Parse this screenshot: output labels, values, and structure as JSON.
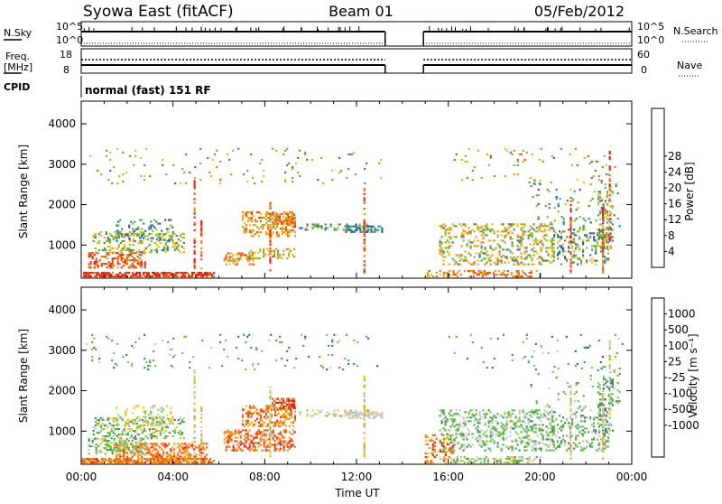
{
  "header": {
    "station": "Syowa East (fitACF)",
    "beam": "Beam 01",
    "date": "05/Feb/2012"
  },
  "panels": {
    "nsky": {
      "left_label": "N.Sky",
      "right_label": "N.Search",
      "left_ticks": [
        "10^5",
        "10^0"
      ],
      "right_ticks": [
        "10^5",
        "10^0"
      ]
    },
    "freq": {
      "left_label_1": "Freq.",
      "left_label_2": "[MHz]",
      "right_label": "Nave",
      "left_ticks": [
        "18",
        "8"
      ],
      "right_ticks": [
        "60",
        "0"
      ]
    },
    "cpid": {
      "label": "CPID",
      "text": "normal (fast) 151 RF"
    }
  },
  "chart_data": [
    {
      "type": "heatmap",
      "title": "",
      "ylabel": "Slant Range [km]",
      "xlabel": "",
      "ylim": [
        180,
        4560
      ],
      "yticks": [
        "1000",
        "2000",
        "3000",
        "4000"
      ],
      "xlim": [
        "00:00",
        "24:00"
      ],
      "data_gap": [
        "13:15",
        "14:55"
      ],
      "colorbar": {
        "label": "Power [dB]",
        "ticks": [
          "4",
          "8",
          "12",
          "16",
          "20",
          "24",
          "28"
        ],
        "colors": [
          "#1030e0",
          "#2a55b8",
          "#3c7e80",
          "#4ea35a",
          "#88b830",
          "#e6c21a",
          "#f2a01a",
          "#ef7a1a",
          "#e84a18",
          "#e0201a"
        ]
      }
    },
    {
      "type": "heatmap",
      "title": "",
      "ylabel": "Slant Range [km]",
      "xlabel": "Time UT",
      "ylim": [
        180,
        4560
      ],
      "yticks": [
        "1000",
        "2000",
        "3000",
        "4000"
      ],
      "xticks": [
        "00:00",
        "04:00",
        "08:00",
        "12:00",
        "16:00",
        "20:00",
        "00:00"
      ],
      "xlim": [
        "00:00",
        "24:00"
      ],
      "data_gap": [
        "13:15",
        "14:55"
      ],
      "colorbar": {
        "label": "Velocity [m s⁻¹]",
        "ticks": [
          "1000",
          "500",
          "100",
          "25",
          "-25",
          "-100",
          "-500",
          "-1000"
        ],
        "colors": [
          "#2030c0",
          "#2e62b0",
          "#3f8c6a",
          "#52b040",
          "#7ac94c",
          "#c8c8c8",
          "#f0c020",
          "#f09a20",
          "#e8641c",
          "#e02020"
        ]
      }
    }
  ]
}
